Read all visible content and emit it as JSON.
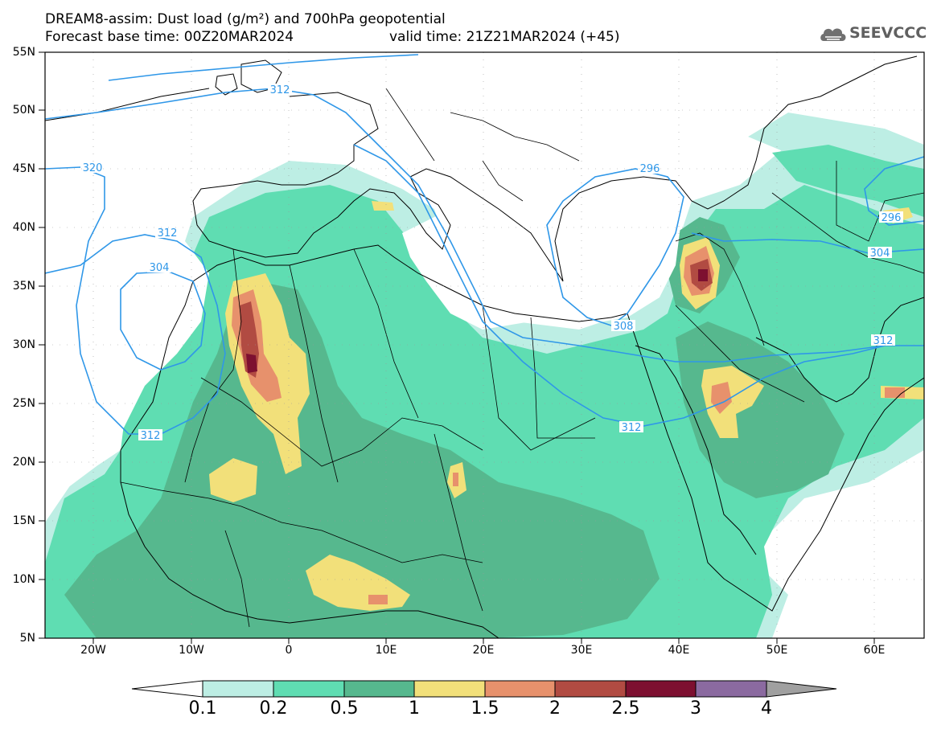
{
  "header": {
    "title_line1": "DREAM8-assim: Dust load (g/m²) and 700hPa geopotential",
    "title_line2": "Forecast base time: 00Z20MAR2024",
    "title_line2b": "valid time: 21Z21MAR2024 (+45)"
  },
  "logo": {
    "text": "SEEVCCC",
    "icon": "cloud-logo-icon"
  },
  "axes": {
    "lat_labels": [
      "55N",
      "50N",
      "45N",
      "40N",
      "35N",
      "30N",
      "25N",
      "20N",
      "15N",
      "10N",
      "5N"
    ],
    "lon_labels": [
      "20W",
      "10W",
      "0",
      "10E",
      "20E",
      "30E",
      "40E",
      "50E",
      "60E"
    ]
  },
  "contour_labels": [
    "312",
    "320",
    "312",
    "304",
    "312",
    "296",
    "296",
    "304",
    "312",
    "308",
    "312"
  ],
  "legend": {
    "labels": [
      "0.1",
      "0.2",
      "0.5",
      "1",
      "1.5",
      "2",
      "2.5",
      "3",
      "4"
    ],
    "colors": [
      "#ffffff",
      "#bdeee4",
      "#5fddb2",
      "#56b88e",
      "#f2e07a",
      "#e7916c",
      "#b14b42",
      "#7d1030",
      "#8b6aa0",
      "#a0a0a0"
    ]
  },
  "colors": {
    "ocean": "#ffffff",
    "geopotential_contour": "#2f97e8",
    "land_border": "#000000"
  }
}
